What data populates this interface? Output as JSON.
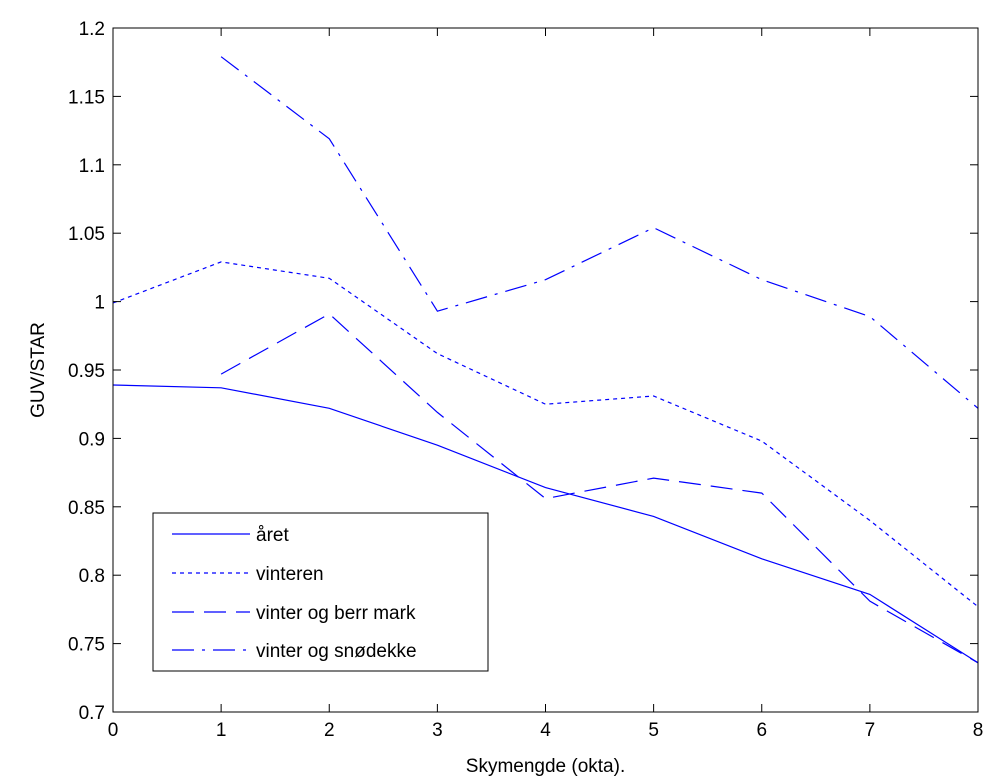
{
  "chart_data": {
    "type": "line",
    "title": "",
    "xlabel": "Skymengde (okta).",
    "ylabel": "GUV/STAR",
    "xlim": [
      0,
      8
    ],
    "ylim": [
      0.7,
      1.2
    ],
    "xticks": [
      0,
      1,
      2,
      3,
      4,
      5,
      6,
      7,
      8
    ],
    "xtick_labels": [
      "0",
      "1",
      "2",
      "3",
      "4",
      "5",
      "6",
      "7",
      "8"
    ],
    "yticks": [
      0.7,
      0.75,
      0.8,
      0.85,
      0.9,
      0.95,
      1.0,
      1.05,
      1.1,
      1.15,
      1.2
    ],
    "ytick_labels": [
      "0.7",
      "0.75",
      "0.8",
      "0.85",
      "0.9",
      "0.95",
      "1",
      "1.05",
      "1.1",
      "1.15",
      "1.2"
    ],
    "grid": false,
    "legend_position": "bottom-left",
    "line_color": "#0000ff",
    "series": [
      {
        "name": "året",
        "style": "solid",
        "x": [
          0,
          1,
          2,
          3,
          4,
          5,
          6,
          7,
          8
        ],
        "y": [
          0.939,
          0.937,
          0.922,
          0.895,
          0.864,
          0.843,
          0.812,
          0.786,
          0.736
        ]
      },
      {
        "name": "vinteren",
        "style": "dotted",
        "x": [
          0,
          1,
          2,
          3,
          4,
          5,
          6,
          7,
          8
        ],
        "y": [
          0.999,
          1.029,
          1.017,
          0.962,
          0.925,
          0.931,
          0.898,
          0.84,
          0.777
        ]
      },
      {
        "name": "vinter og berr mark",
        "style": "dashed",
        "x": [
          1,
          2,
          3,
          4,
          5,
          6,
          7,
          8
        ],
        "y": [
          0.947,
          0.991,
          0.919,
          0.856,
          0.871,
          0.86,
          0.781,
          0.736
        ]
      },
      {
        "name": "vinter og snødekke",
        "style": "dashdot",
        "x": [
          1,
          2,
          3,
          4,
          5,
          6,
          7,
          8
        ],
        "y": [
          1.179,
          1.119,
          0.993,
          1.016,
          1.054,
          1.016,
          0.989,
          0.922
        ]
      }
    ]
  }
}
